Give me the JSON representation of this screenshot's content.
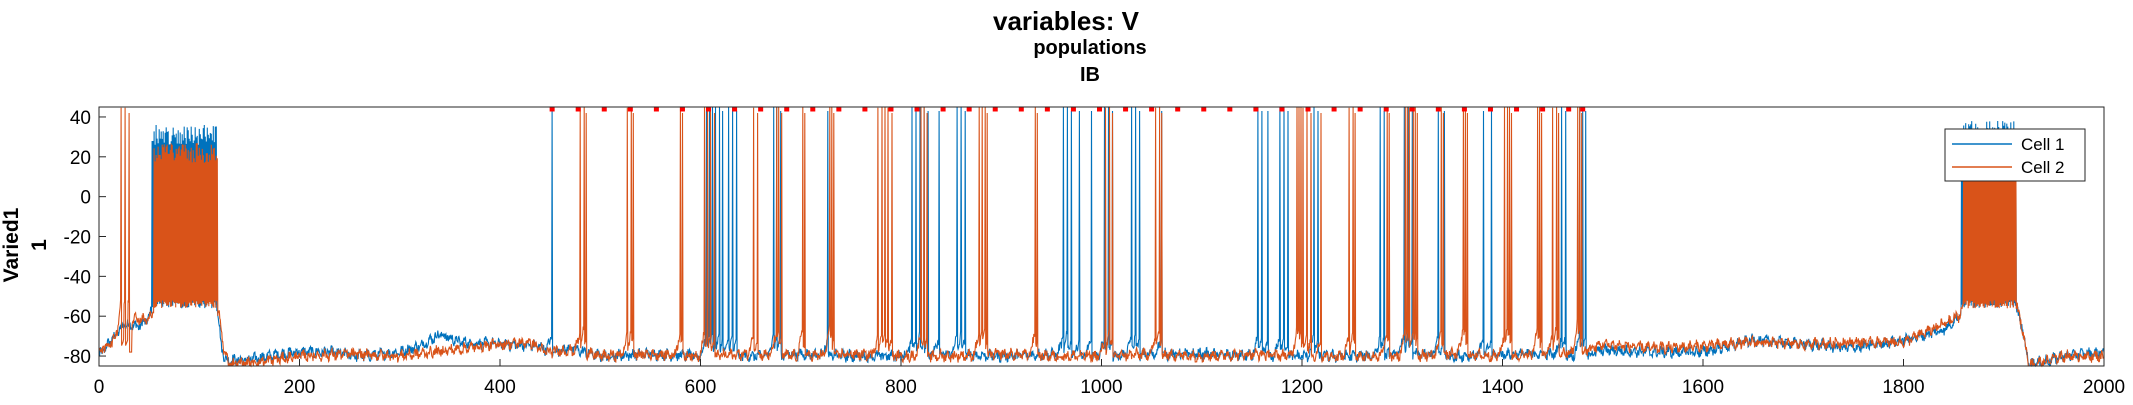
{
  "chart_data": {
    "type": "line",
    "title": "variables: V",
    "subtitle_lines": [
      "populations",
      "IB"
    ],
    "ylabel_lines": [
      "Varied1",
      "1"
    ],
    "xlabel": "",
    "xlim": [
      0,
      2000
    ],
    "ylim": [
      -85,
      45
    ],
    "xticks": [
      0,
      200,
      400,
      600,
      800,
      1000,
      1200,
      1400,
      1600,
      1800,
      2000
    ],
    "yticks": [
      -80,
      -60,
      -40,
      -20,
      0,
      20,
      40
    ],
    "grid": false,
    "legend_position": "top-right",
    "raster_marker_y": 44,
    "raster_markers_x": [
      452,
      478,
      504,
      530,
      556,
      582,
      608,
      634,
      660,
      686,
      712,
      738,
      764,
      790,
      816,
      842,
      868,
      894,
      920,
      946,
      972,
      998,
      1024,
      1050,
      1076,
      1102,
      1128,
      1154,
      1180,
      1206,
      1232,
      1258,
      1284,
      1310,
      1336,
      1362,
      1388,
      1414,
      1440,
      1466,
      1480
    ],
    "series": [
      {
        "name": "Cell 1",
        "color": "#0072BD",
        "baseline_points": [
          [
            0,
            -80
          ],
          [
            25,
            -64
          ],
          [
            40,
            -65
          ],
          [
            50,
            -61
          ],
          [
            52,
            -57
          ],
          [
            115,
            -57
          ],
          [
            118,
            -55
          ],
          [
            120,
            -65
          ],
          [
            122,
            -75
          ],
          [
            126,
            -82
          ],
          [
            145,
            -82
          ],
          [
            160,
            -81
          ],
          [
            180,
            -79
          ],
          [
            200,
            -78
          ],
          [
            230,
            -78
          ],
          [
            260,
            -80
          ],
          [
            300,
            -78
          ],
          [
            320,
            -75
          ],
          [
            340,
            -69
          ],
          [
            360,
            -73
          ],
          [
            400,
            -74
          ],
          [
            440,
            -75
          ],
          [
            450,
            -78
          ],
          [
            470,
            -76
          ],
          [
            500,
            -80
          ],
          [
            550,
            -79
          ],
          [
            600,
            -80
          ],
          [
            650,
            -80
          ],
          [
            700,
            -79
          ],
          [
            750,
            -80
          ],
          [
            800,
            -80
          ],
          [
            850,
            -79
          ],
          [
            900,
            -80
          ],
          [
            950,
            -79
          ],
          [
            1000,
            -80
          ],
          [
            1050,
            -79
          ],
          [
            1100,
            -79
          ],
          [
            1150,
            -80
          ],
          [
            1200,
            -80
          ],
          [
            1250,
            -80
          ],
          [
            1300,
            -79
          ],
          [
            1350,
            -80
          ],
          [
            1400,
            -79
          ],
          [
            1450,
            -79
          ],
          [
            1480,
            -80
          ],
          [
            1500,
            -77
          ],
          [
            1550,
            -78
          ],
          [
            1600,
            -78
          ],
          [
            1650,
            -72
          ],
          [
            1700,
            -74
          ],
          [
            1750,
            -76
          ],
          [
            1800,
            -72
          ],
          [
            1840,
            -67
          ],
          [
            1855,
            -60
          ],
          [
            1860,
            -55
          ],
          [
            1912,
            -55
          ],
          [
            1918,
            -65
          ],
          [
            1925,
            -84
          ],
          [
            1940,
            -83
          ],
          [
            1960,
            -80
          ],
          [
            2000,
            -78
          ]
        ],
        "burst_ranges": [
          [
            53,
            117,
            36
          ],
          [
            1858,
            1912,
            38
          ]
        ],
        "spike_times": [
          452,
          606,
          609,
          612,
          615,
          619,
          622,
          628,
          632,
          636,
          673,
          676,
          680,
          727,
          811,
          815,
          819,
          823,
          827,
          838,
          856,
          860,
          864,
          962,
          966,
          970,
          978,
          990,
          1003,
          1007,
          1011,
          1030,
          1034,
          1038,
          1060,
          1156,
          1160,
          1166,
          1178,
          1182,
          1186,
          1212,
          1216,
          1278,
          1282,
          1302,
          1306,
          1310,
          1336,
          1342,
          1381,
          1389,
          1459,
          1463,
          1477,
          1480,
          1483
        ],
        "spike_peak": 43
      },
      {
        "name": "Cell 2",
        "color": "#D95319",
        "baseline_points": [
          [
            0,
            -78
          ],
          [
            10,
            -74
          ],
          [
            18,
            -70
          ],
          [
            22,
            -60
          ],
          [
            50,
            -62
          ],
          [
            55,
            -55
          ],
          [
            115,
            -54
          ],
          [
            120,
            -60
          ],
          [
            125,
            -78
          ],
          [
            130,
            -84
          ],
          [
            160,
            -83
          ],
          [
            200,
            -80
          ],
          [
            250,
            -79
          ],
          [
            300,
            -80
          ],
          [
            350,
            -77
          ],
          [
            400,
            -74
          ],
          [
            430,
            -73
          ],
          [
            445,
            -78
          ],
          [
            470,
            -77
          ],
          [
            500,
            -80
          ],
          [
            550,
            -79
          ],
          [
            600,
            -80
          ],
          [
            650,
            -79
          ],
          [
            700,
            -80
          ],
          [
            750,
            -79
          ],
          [
            800,
            -80
          ],
          [
            850,
            -80
          ],
          [
            900,
            -79
          ],
          [
            950,
            -80
          ],
          [
            1000,
            -80
          ],
          [
            1050,
            -79
          ],
          [
            1100,
            -80
          ],
          [
            1150,
            -79
          ],
          [
            1200,
            -80
          ],
          [
            1250,
            -80
          ],
          [
            1300,
            -80
          ],
          [
            1350,
            -79
          ],
          [
            1400,
            -80
          ],
          [
            1450,
            -79
          ],
          [
            1480,
            -78
          ],
          [
            1500,
            -74
          ],
          [
            1550,
            -76
          ],
          [
            1600,
            -75
          ],
          [
            1650,
            -73
          ],
          [
            1700,
            -74
          ],
          [
            1750,
            -73
          ],
          [
            1800,
            -73
          ],
          [
            1840,
            -64
          ],
          [
            1855,
            -60
          ],
          [
            1860,
            -55
          ],
          [
            1912,
            -53
          ],
          [
            1918,
            -65
          ],
          [
            1925,
            -84
          ],
          [
            1940,
            -83
          ],
          [
            1960,
            -80
          ],
          [
            2000,
            -80
          ]
        ],
        "burst_ranges": [
          [
            55,
            118,
            27
          ],
          [
            1860,
            1912,
            34
          ]
        ],
        "spike_times": [
          22,
          26,
          30,
          480,
          484,
          486,
          527,
          531,
          533,
          580,
          582,
          604,
          607,
          610,
          614,
          653,
          657,
          676,
          678,
          681,
          702,
          704,
          729,
          731,
          733,
          777,
          781,
          784,
          787,
          791,
          820,
          823,
          826,
          878,
          881,
          884,
          886,
          934,
          936,
          1004,
          1008,
          1011,
          1054,
          1058,
          1060,
          1195,
          1197,
          1199,
          1201,
          1205,
          1209,
          1219,
          1247,
          1251,
          1253,
          1285,
          1287,
          1303,
          1305,
          1307,
          1311,
          1313,
          1315,
          1339,
          1341,
          1361,
          1363,
          1365,
          1402,
          1405,
          1407,
          1409,
          1435,
          1437,
          1439,
          1450,
          1454,
          1456,
          1475,
          1477,
          1479
        ],
        "spike_peak": 42
      }
    ]
  }
}
